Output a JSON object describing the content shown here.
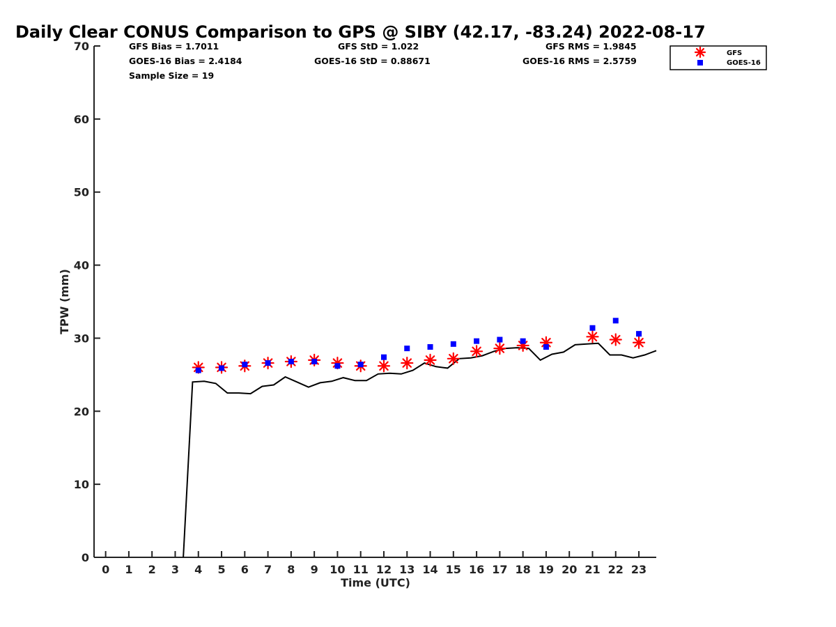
{
  "chart_data": {
    "type": "scatter",
    "title": "Daily Clear CONUS Comparison to GPS @ SIBY (42.17, -83.24) 2022-08-17",
    "xlabel": "Time (UTC)",
    "ylabel": "TPW (mm)",
    "xlim": [
      -0.5,
      23.75
    ],
    "ylim": [
      0,
      70
    ],
    "xticks": [
      0,
      1,
      2,
      3,
      4,
      5,
      6,
      7,
      8,
      9,
      10,
      11,
      12,
      13,
      14,
      15,
      16,
      17,
      18,
      19,
      20,
      21,
      22,
      23
    ],
    "yticks": [
      0,
      10,
      20,
      30,
      40,
      50,
      60,
      70
    ],
    "grid": false,
    "legend": {
      "position": "top-right",
      "entries": [
        "GFS",
        "GOES-16"
      ]
    },
    "stats": {
      "row1": [
        "GFS Bias = 1.7011",
        "GFS StD = 1.022",
        "GFS RMS = 1.9845"
      ],
      "row2": [
        "GOES-16 Bias = 2.4184",
        "GOES-16 StD = 0.88671",
        "GOES-16 RMS = 2.5759"
      ],
      "row3": [
        "Sample Size = 19"
      ]
    },
    "series": [
      {
        "name": "GFS",
        "kind": "asterisk",
        "color": "#ff0000",
        "x": [
          4,
          5,
          6,
          7,
          8,
          9,
          10,
          11,
          12,
          13,
          14,
          15,
          16,
          17,
          18,
          19,
          21,
          22,
          23
        ],
        "y": [
          26.0,
          26.0,
          26.2,
          26.6,
          26.8,
          27.0,
          26.6,
          26.2,
          26.2,
          26.6,
          27.0,
          27.2,
          28.2,
          28.6,
          29.0,
          29.4,
          30.2,
          29.8,
          29.4
        ]
      },
      {
        "name": "GOES-16",
        "kind": "square",
        "color": "#0000ff",
        "x": [
          4,
          5,
          6,
          7,
          8,
          9,
          10,
          11,
          12,
          13,
          14,
          15,
          16,
          17,
          18,
          19,
          21,
          22,
          23
        ],
        "y": [
          25.6,
          25.9,
          26.4,
          26.6,
          26.8,
          26.8,
          26.2,
          26.4,
          27.4,
          28.6,
          28.8,
          29.2,
          29.6,
          29.8,
          29.6,
          28.8,
          31.4,
          32.4,
          30.6
        ]
      },
      {
        "name": "GPS",
        "kind": "line",
        "color": "#000000",
        "x": [
          3.35,
          3.75,
          4.25,
          4.75,
          5.25,
          5.75,
          6.25,
          6.75,
          7.25,
          7.75,
          8.25,
          8.75,
          9.25,
          9.75,
          10.25,
          10.75,
          11.25,
          11.75,
          12.25,
          12.75,
          13.25,
          13.75,
          14.25,
          14.75,
          15.25,
          15.75,
          16.25,
          16.75,
          17.25,
          17.75,
          18.25,
          18.75,
          19.25,
          19.75,
          20.25,
          20.75,
          21.25,
          21.75,
          22.25,
          22.75,
          23.25,
          23.75
        ],
        "y": [
          0,
          24.0,
          24.1,
          23.8,
          22.5,
          22.5,
          22.4,
          23.4,
          23.6,
          24.7,
          24.0,
          23.3,
          23.9,
          24.1,
          24.6,
          24.2,
          24.2,
          25.1,
          25.2,
          25.1,
          25.6,
          26.6,
          26.1,
          25.9,
          27.2,
          27.3,
          27.6,
          28.2,
          28.6,
          28.7,
          28.6,
          27.0,
          27.8,
          28.1,
          29.1,
          29.2,
          29.3,
          27.7,
          27.7,
          27.3,
          27.7,
          28.3
        ]
      }
    ]
  }
}
